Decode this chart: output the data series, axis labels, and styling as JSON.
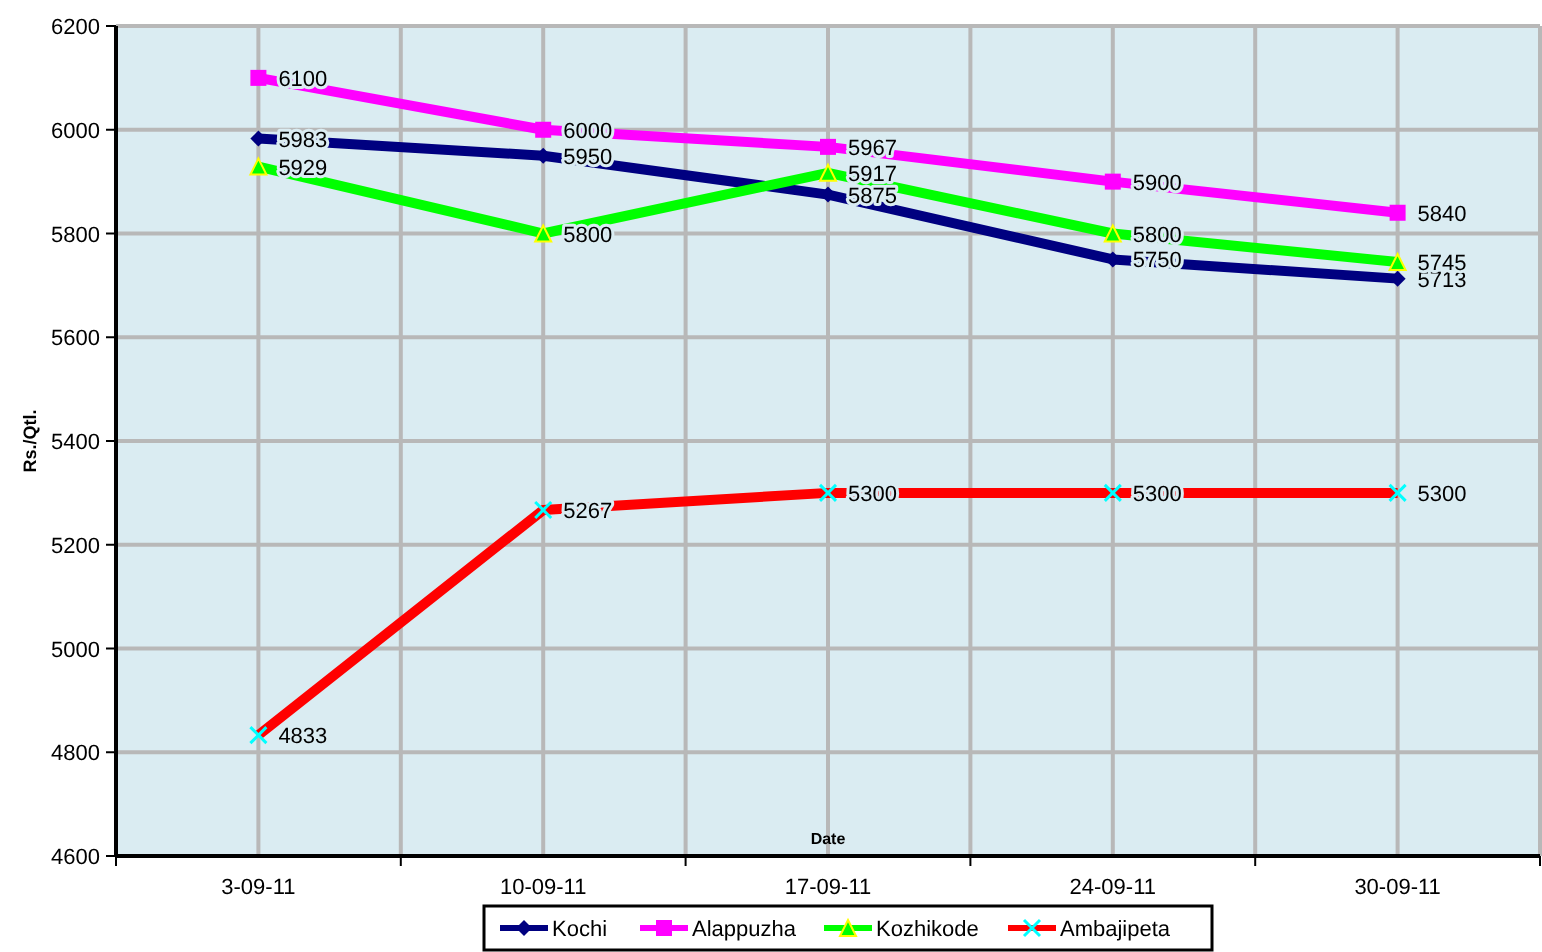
{
  "chart_data": {
    "type": "line",
    "xlabel": "Date",
    "ylabel": "Rs./Qtl.",
    "categories": [
      "3-09-11",
      "10-09-11",
      "17-09-11",
      "24-09-11",
      "30-09-11"
    ],
    "series": [
      {
        "name": "Kochi",
        "color": "#000080",
        "values": [
          5983,
          5950,
          5875,
          5750,
          5713
        ],
        "marker": "diamond"
      },
      {
        "name": "Alappuzha",
        "color": "#ff00ff",
        "values": [
          6100,
          6000,
          5967,
          5900,
          5840
        ],
        "marker": "square"
      },
      {
        "name": "Kozhikode",
        "color": "#00ff00",
        "values": [
          5929,
          5800,
          5917,
          5800,
          5745
        ],
        "marker": "triangle"
      },
      {
        "name": "Ambajipeta",
        "color": "#ff0000",
        "values": [
          4833,
          5267,
          5300,
          5300,
          5300
        ],
        "marker": "cross"
      }
    ],
    "ylim": [
      4600,
      6200
    ],
    "yticks": [
      4600,
      4800,
      5000,
      5200,
      5400,
      5600,
      5800,
      6000,
      6200
    ],
    "grid": true,
    "legend": "bottom",
    "data_labels": true
  }
}
